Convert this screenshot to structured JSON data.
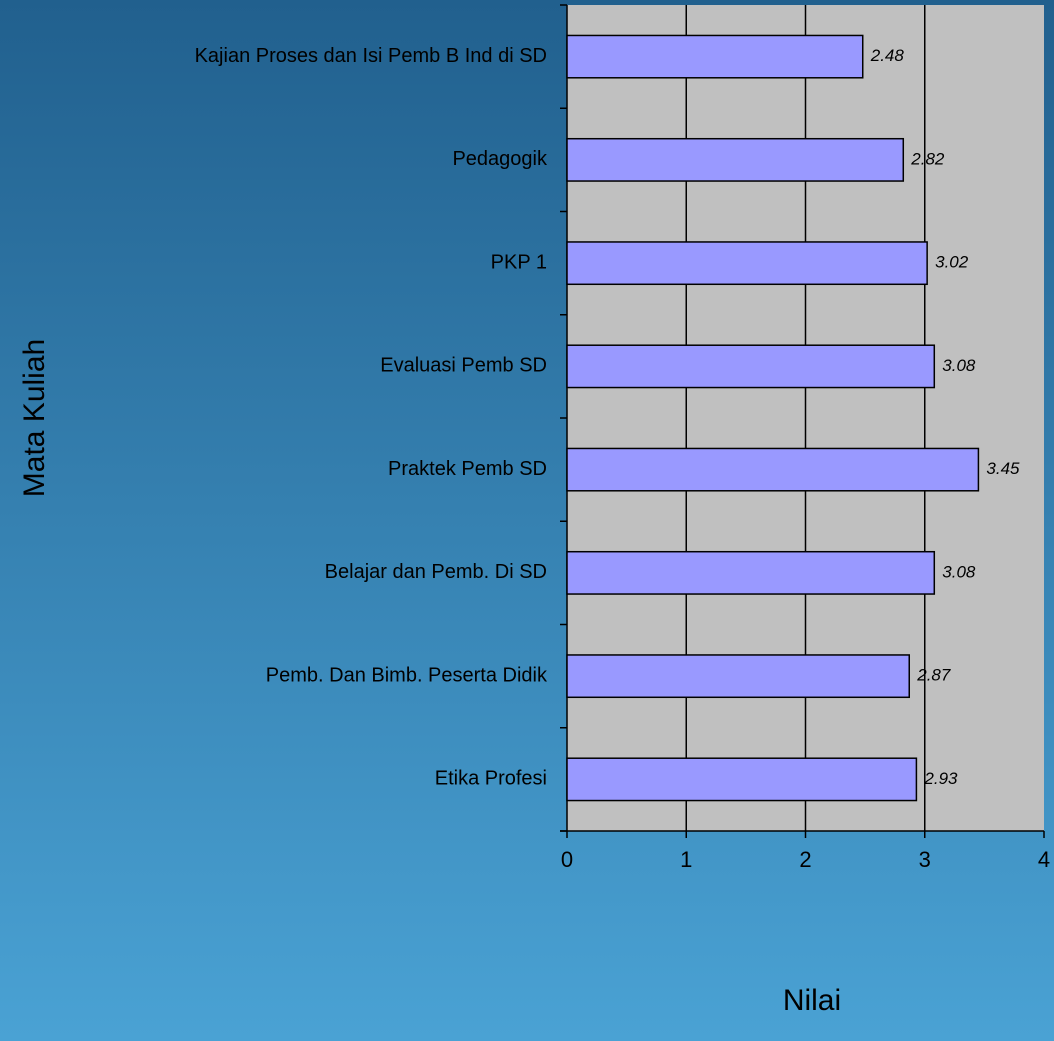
{
  "chart_data": {
    "type": "bar",
    "orientation": "horizontal",
    "x_label": "Nilai",
    "y_label": "Mata Kuliah",
    "categories": [
      "Kajian Proses dan Isi Pemb B Ind di SD",
      "Pedagogik",
      "PKP 1",
      "Evaluasi Pemb SD",
      "Praktek Pemb SD",
      "Belajar dan Pemb. Di SD",
      "Pemb. Dan Bimb. Peserta Didik",
      "Etika Profesi"
    ],
    "values": [
      2.48,
      2.82,
      3.02,
      3.08,
      3.45,
      3.08,
      2.87,
      2.93
    ],
    "color": "#9999ff",
    "xlim": [
      0,
      4
    ],
    "xticks": [
      0,
      1,
      2,
      3,
      4
    ],
    "grid": true
  }
}
